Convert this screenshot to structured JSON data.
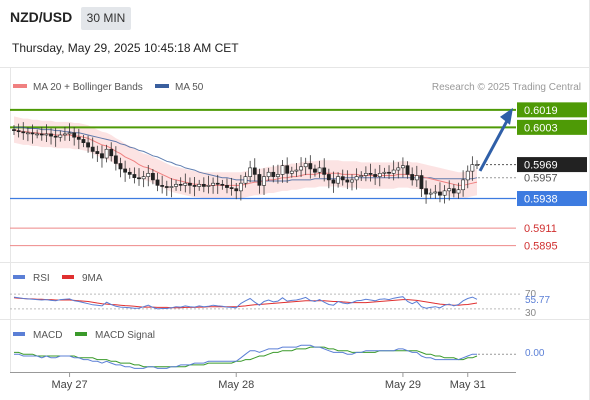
{
  "header": {
    "symbol": "NZD/USD",
    "timeframe": "30 MIN",
    "datetime": "Thursday, May 29, 2025 10:45:18 AM CET"
  },
  "legend": {
    "ma20_label": "MA 20 + Bollinger Bands",
    "ma50_label": "MA 50",
    "ma20_color": "#f08080",
    "ma50_color": "#3a5f9e",
    "copyright": "Research © 2025 Trading Central"
  },
  "chart_data": [
    {
      "type": "candlestick",
      "y_scale": {
        "top": 0.6028,
        "bottom": 0.588
      },
      "levels": [
        {
          "name": "resistance-2",
          "value": "0.6019",
          "kind": "green"
        },
        {
          "name": "resistance-1",
          "value": "0.6003",
          "kind": "green"
        },
        {
          "name": "last-price",
          "value": "0.5969",
          "kind": "last"
        },
        {
          "name": "pivot",
          "value": "0.5957",
          "kind": "gray"
        },
        {
          "name": "support-pivot",
          "value": "0.5938",
          "kind": "blue"
        },
        {
          "name": "support-1",
          "value": "0.5911",
          "kind": "red"
        },
        {
          "name": "support-2",
          "value": "0.5895",
          "kind": "red"
        }
      ],
      "close": [
        0.6,
        0.5999,
        0.5998,
        0.5998,
        0.5997,
        0.5997,
        0.5996,
        0.5997,
        0.5995,
        0.5994,
        0.5996,
        0.5997,
        0.5998,
        0.5994,
        0.5992,
        0.5989,
        0.5985,
        0.5981,
        0.5979,
        0.5975,
        0.5983,
        0.5977,
        0.597,
        0.5965,
        0.5962,
        0.596,
        0.5957,
        0.5956,
        0.5958,
        0.5961,
        0.5955,
        0.595,
        0.5949,
        0.5948,
        0.5949,
        0.5951,
        0.595,
        0.5952,
        0.595,
        0.5949,
        0.5951,
        0.5949,
        0.595,
        0.5952,
        0.5951,
        0.595,
        0.5948,
        0.5947,
        0.5945,
        0.5952,
        0.5958,
        0.5966,
        0.596,
        0.595,
        0.5958,
        0.5962,
        0.5958,
        0.596,
        0.5968,
        0.5961,
        0.5963,
        0.5964,
        0.5967,
        0.597,
        0.5965,
        0.5962,
        0.5966,
        0.596,
        0.5955,
        0.5952,
        0.5958,
        0.5955,
        0.5953,
        0.5955,
        0.5958,
        0.5959,
        0.5961,
        0.596,
        0.5958,
        0.5961,
        0.5962,
        0.5961,
        0.5964,
        0.5966,
        0.5968,
        0.596,
        0.5955,
        0.5959,
        0.5947,
        0.5942,
        0.5943,
        0.5944,
        0.5941,
        0.5945,
        0.5947,
        0.5943,
        0.5946,
        0.5955,
        0.5963,
        0.5969,
        0.5969
      ],
      "ma20": [
        0.6001,
        0.6,
        0.5999,
        0.5999,
        0.5998,
        0.5998,
        0.5997,
        0.5997,
        0.5997,
        0.5996,
        0.5996,
        0.5996,
        0.5996,
        0.5995,
        0.5995,
        0.5994,
        0.5993,
        0.5991,
        0.5989,
        0.5987,
        0.5986,
        0.5984,
        0.5981,
        0.5979,
        0.5976,
        0.5974,
        0.5972,
        0.5969,
        0.5967,
        0.5966,
        0.5964,
        0.5962,
        0.596,
        0.5958,
        0.5956,
        0.5955,
        0.5954,
        0.5953,
        0.5952,
        0.5951,
        0.5951,
        0.595,
        0.595,
        0.595,
        0.595,
        0.595,
        0.595,
        0.595,
        0.595,
        0.595,
        0.5951,
        0.5952,
        0.5953,
        0.5953,
        0.5954,
        0.5955,
        0.5955,
        0.5956,
        0.5957,
        0.5957,
        0.5958,
        0.5958,
        0.5959,
        0.596,
        0.596,
        0.596,
        0.5961,
        0.5961,
        0.5961,
        0.5961,
        0.5961,
        0.596,
        0.596,
        0.596,
        0.596,
        0.5959,
        0.5959,
        0.5959,
        0.5959,
        0.5959,
        0.5959,
        0.5959,
        0.5959,
        0.596,
        0.596,
        0.596,
        0.5959,
        0.5959,
        0.5958,
        0.5957,
        0.5956,
        0.5955,
        0.5954,
        0.5953,
        0.5952,
        0.5951,
        0.595,
        0.595,
        0.5951,
        0.5952,
        0.5953
      ],
      "ma50": [
        0.6003,
        0.6003,
        0.6003,
        0.6002,
        0.6002,
        0.6002,
        0.6001,
        0.6001,
        0.6001,
        0.6,
        0.6,
        0.5999,
        0.5999,
        0.5998,
        0.5998,
        0.5997,
        0.5996,
        0.5995,
        0.5994,
        0.5993,
        0.5992,
        0.5991,
        0.599,
        0.5988,
        0.5987,
        0.5985,
        0.5984,
        0.5982,
        0.5981,
        0.5979,
        0.5977,
        0.5976,
        0.5974,
        0.5972,
        0.5971,
        0.5969,
        0.5968,
        0.5966,
        0.5965,
        0.5964,
        0.5962,
        0.5961,
        0.596,
        0.5959,
        0.5958,
        0.5957,
        0.5957,
        0.5956,
        0.5955,
        0.5955,
        0.5955,
        0.5954,
        0.5954,
        0.5954,
        0.5954,
        0.5954,
        0.5954,
        0.5954,
        0.5954,
        0.5954,
        0.5955,
        0.5955,
        0.5955,
        0.5955,
        0.5955,
        0.5956,
        0.5956,
        0.5956,
        0.5956,
        0.5956,
        0.5956,
        0.5957,
        0.5957,
        0.5957,
        0.5957,
        0.5957,
        0.5957,
        0.5957,
        0.5957,
        0.5957,
        0.5957,
        0.5957,
        0.5957,
        0.5957,
        0.5957,
        0.5957,
        0.5957,
        0.5957,
        0.5957,
        0.5957,
        0.5957,
        0.5956,
        0.5956,
        0.5956,
        0.5956,
        0.5956,
        0.5956,
        0.5956,
        0.5956,
        0.5956,
        0.5957
      ],
      "band_half_width": 0.0012,
      "projection": {
        "from": 0.5965,
        "to": 0.6019
      }
    },
    {
      "type": "line",
      "name": "rsi-panel",
      "legend": [
        "RSI",
        "9MA"
      ],
      "colors": {
        "rsi": "#5b7fd6",
        "ma": "#e03030"
      },
      "levels": [
        "70",
        "30"
      ],
      "last_value": "55.77",
      "range": [
        0,
        100
      ],
      "rsi": [
        62,
        60,
        58,
        57,
        56,
        55,
        54,
        55,
        53,
        52,
        55,
        56,
        57,
        52,
        50,
        47,
        44,
        41,
        40,
        38,
        48,
        42,
        37,
        35,
        34,
        33,
        32,
        32,
        36,
        40,
        34,
        30,
        31,
        31,
        33,
        36,
        35,
        38,
        36,
        35,
        38,
        36,
        37,
        40,
        38,
        37,
        35,
        34,
        33,
        45,
        52,
        58,
        48,
        40,
        50,
        54,
        49,
        51,
        60,
        51,
        53,
        54,
        57,
        61,
        53,
        50,
        55,
        48,
        42,
        40,
        50,
        46,
        44,
        47,
        52,
        53,
        56,
        54,
        52,
        56,
        57,
        55,
        59,
        61,
        63,
        50,
        44,
        50,
        36,
        32,
        34,
        36,
        33,
        40,
        43,
        38,
        42,
        52,
        58,
        62,
        56
      ],
      "ma": [
        60,
        59,
        58,
        57,
        57,
        56,
        56,
        55,
        55,
        54,
        54,
        54,
        54,
        53,
        52,
        51,
        50,
        48,
        46,
        44,
        43,
        42,
        41,
        40,
        39,
        38,
        37,
        36,
        35,
        35,
        35,
        34,
        34,
        34,
        33,
        33,
        33,
        34,
        34,
        34,
        35,
        35,
        36,
        36,
        36,
        36,
        36,
        36,
        36,
        37,
        38,
        40,
        41,
        42,
        43,
        44,
        45,
        46,
        47,
        48,
        49,
        50,
        51,
        52,
        52,
        52,
        52,
        52,
        51,
        50,
        50,
        49,
        48,
        47,
        47,
        47,
        47,
        48,
        49,
        50,
        51,
        52,
        53,
        54,
        55,
        55,
        54,
        53,
        51,
        49,
        47,
        45,
        43,
        42,
        41,
        40,
        40,
        41,
        42,
        44,
        46
      ]
    },
    {
      "type": "line",
      "name": "macd-panel",
      "legend": [
        "MACD",
        "MACD Signal"
      ],
      "colors": {
        "macd": "#5b7fd6",
        "signal": "#3a9a2a"
      },
      "zero_label": "0.00",
      "range": [
        -0.001,
        0.0008
      ],
      "macd": [
        0.0,
        0.0,
        -0.0001,
        -0.0001,
        -0.0001,
        -0.0001,
        -0.0002,
        -0.0001,
        -0.0002,
        -0.0002,
        -0.0001,
        -0.0001,
        -0.0001,
        -0.0002,
        -0.0002,
        -0.0003,
        -0.0003,
        -0.0004,
        -0.0004,
        -0.0005,
        -0.0004,
        -0.0005,
        -0.0006,
        -0.0006,
        -0.0007,
        -0.0007,
        -0.0008,
        -0.0008,
        -0.0008,
        -0.0007,
        -0.0007,
        -0.0008,
        -0.0008,
        -0.0008,
        -0.0007,
        -0.0007,
        -0.0006,
        -0.0006,
        -0.0006,
        -0.0005,
        -0.0005,
        -0.0005,
        -0.0004,
        -0.0004,
        -0.0004,
        -0.0004,
        -0.0004,
        -0.0004,
        -0.0004,
        -0.0002,
        0.0,
        0.0002,
        0.0002,
        0.0001,
        0.0002,
        0.0003,
        0.0003,
        0.0003,
        0.0004,
        0.0004,
        0.0004,
        0.0004,
        0.0005,
        0.0005,
        0.0005,
        0.0004,
        0.0004,
        0.0003,
        0.0002,
        0.0001,
        0.0001,
        0.0001,
        0.0,
        0.0,
        0.0001,
        0.0001,
        0.0002,
        0.0002,
        0.0002,
        0.0002,
        0.0002,
        0.0002,
        0.0002,
        0.0003,
        0.0003,
        0.0002,
        0.0001,
        0.0001,
        -0.0001,
        -0.0002,
        -0.0002,
        -0.0003,
        -0.0003,
        -0.0003,
        -0.0003,
        -0.0003,
        -0.0003,
        -0.0002,
        -0.0001,
        0.0,
        0.0
      ],
      "signal": [
        0.0001,
        0.0001,
        0.0,
        0.0,
        0.0,
        -0.0001,
        -0.0001,
        -0.0001,
        -0.0001,
        -0.0001,
        -0.0001,
        -0.0001,
        -0.0001,
        -0.0001,
        -0.0002,
        -0.0002,
        -0.0002,
        -0.0002,
        -0.0003,
        -0.0003,
        -0.0003,
        -0.0004,
        -0.0004,
        -0.0005,
        -0.0005,
        -0.0005,
        -0.0006,
        -0.0006,
        -0.0007,
        -0.0007,
        -0.0007,
        -0.0007,
        -0.0007,
        -0.0007,
        -0.0007,
        -0.0007,
        -0.0007,
        -0.0007,
        -0.0006,
        -0.0006,
        -0.0006,
        -0.0006,
        -0.0005,
        -0.0005,
        -0.0005,
        -0.0005,
        -0.0005,
        -0.0005,
        -0.0004,
        -0.0004,
        -0.0003,
        -0.0003,
        -0.0002,
        -0.0001,
        -0.0001,
        0.0,
        0.0001,
        0.0001,
        0.0002,
        0.0002,
        0.0002,
        0.0003,
        0.0003,
        0.0003,
        0.0004,
        0.0004,
        0.0004,
        0.0004,
        0.0003,
        0.0003,
        0.0002,
        0.0002,
        0.0002,
        0.0001,
        0.0001,
        0.0001,
        0.0001,
        0.0001,
        0.0001,
        0.0002,
        0.0002,
        0.0002,
        0.0002,
        0.0002,
        0.0002,
        0.0002,
        0.0002,
        0.0002,
        0.0001,
        0.0,
        0.0,
        -0.0001,
        -0.0001,
        -0.0002,
        -0.0002,
        -0.0002,
        -0.0003,
        -0.0003,
        -0.0002,
        -0.0002,
        -0.0001
      ]
    }
  ],
  "x_axis": {
    "ticks": [
      {
        "label": "May 27",
        "index": 12
      },
      {
        "label": "May 28",
        "index": 48
      },
      {
        "label": "May 29",
        "index": 84
      },
      {
        "label": "May 31",
        "index": 98
      }
    ]
  }
}
